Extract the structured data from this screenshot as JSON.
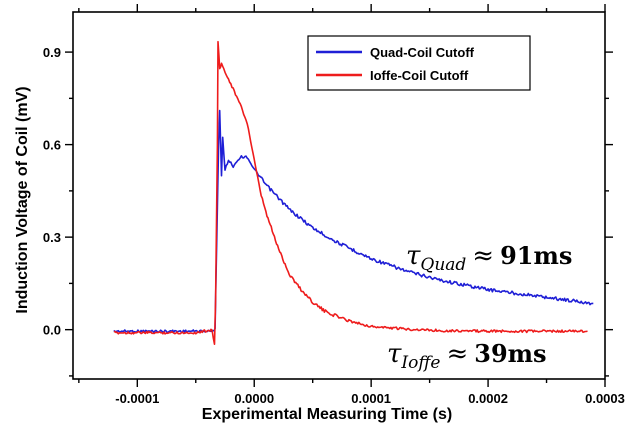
{
  "chart_data": {
    "type": "line",
    "xlabel": "Experimental Measuring Time (s)",
    "ylabel": "Induction Voltage of Coil (mV)",
    "xlim": [
      -0.000155,
      0.0003
    ],
    "ylim": [
      -0.16,
      1.03
    ],
    "x_ticks": [
      -0.0001,
      0.0,
      0.0001,
      0.0002,
      0.0003
    ],
    "x_tick_labels": [
      "-0.0001",
      "0.0000",
      "0.0001",
      "0.0002",
      "0.0003"
    ],
    "y_ticks": [
      0.0,
      0.3,
      0.6,
      0.9
    ],
    "y_tick_labels": [
      "0.0",
      "0.3",
      "0.6",
      "0.9"
    ],
    "grid": false,
    "legend_position": "top-right",
    "series": [
      {
        "name": "Quad-Coil Cutoff",
        "color": "#1f1fd6",
        "x": [
          -0.00012,
          -8e-05,
          -4e-05,
          -3.5e-05,
          -3.35e-05,
          -3.2e-05,
          -3.05e-05,
          -2.95e-05,
          -2.8e-05,
          -2.7e-05,
          -2.5e-05,
          -2.2e-05,
          -1.8e-05,
          -1.2e-05,
          -6e-06,
          0.0,
          1e-05,
          2e-05,
          3e-05,
          5e-05,
          7e-05,
          0.0001,
          0.00013,
          0.00016,
          0.0002,
          0.00024,
          0.00029
        ],
        "y": [
          -0.005,
          -0.005,
          -0.005,
          -0.005,
          0.005,
          0.3,
          0.6,
          0.71,
          0.5,
          0.62,
          0.52,
          0.55,
          0.53,
          0.56,
          0.56,
          0.52,
          0.47,
          0.43,
          0.39,
          0.33,
          0.285,
          0.23,
          0.19,
          0.16,
          0.13,
          0.11,
          0.085
        ]
      },
      {
        "name": "Ioffe-Coil Cutoff",
        "color": "#ee1c1c",
        "x": [
          -0.00012,
          -8e-05,
          -5e-05,
          -3.6e-05,
          -3.4e-05,
          -3.3e-05,
          -3.15e-05,
          -3.1e-05,
          -2.95e-05,
          -2.8e-05,
          -2.4e-05,
          -1.8e-05,
          -1.2e-05,
          -6e-06,
          0.0,
          5e-06,
          1e-05,
          2e-05,
          3e-05,
          4e-05,
          5e-05,
          6e-05,
          8e-05,
          0.0001,
          0.00013,
          0.00016,
          0.0002,
          0.00025,
          0.000285
        ],
        "y": [
          -0.01,
          -0.01,
          -0.01,
          0.0,
          -0.05,
          0.1,
          0.6,
          0.93,
          0.85,
          0.86,
          0.83,
          0.78,
          0.73,
          0.67,
          0.55,
          0.45,
          0.38,
          0.27,
          0.18,
          0.13,
          0.09,
          0.06,
          0.03,
          0.01,
          0.002,
          -0.003,
          -0.005,
          -0.005,
          -0.005
        ]
      }
    ],
    "annotations": [
      {
        "symbol": "τ",
        "subscript": "Quad",
        "operator": "≈",
        "value": "91ms"
      },
      {
        "symbol": "τ",
        "subscript": "Ioffe",
        "operator": "≈",
        "value": "39ms"
      }
    ]
  }
}
